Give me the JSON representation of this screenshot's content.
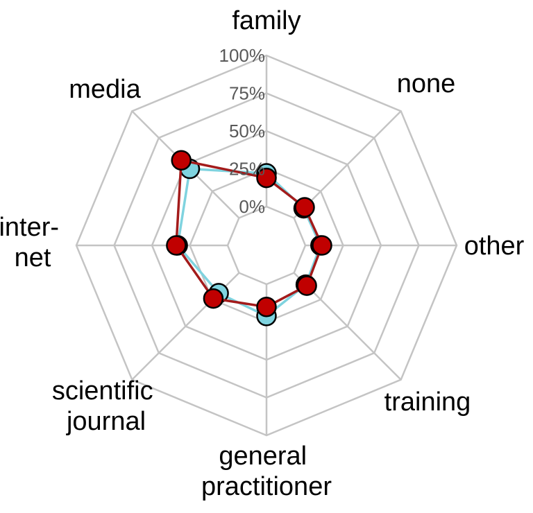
{
  "chart_data": {
    "type": "radar",
    "categories": [
      "family",
      "none",
      "other",
      "training",
      "general practitioner",
      "scientific journal",
      "internet",
      "media"
    ],
    "category_label_lines": [
      [
        "family"
      ],
      [
        "none"
      ],
      [
        "other"
      ],
      [
        "training"
      ],
      [
        "general",
        "practitioner"
      ],
      [
        "scientific",
        "journal"
      ],
      [
        "inter-",
        "net"
      ],
      [
        "media"
      ]
    ],
    "rlim": [
      0,
      100
    ],
    "ticks": [
      "0%",
      "25%",
      "50%",
      "75%",
      "100%"
    ],
    "grid": true,
    "series": [
      {
        "color": "#7fd3df",
        "marker_color": "#7fd3df",
        "values": [
          22,
          9,
          10,
          11,
          21,
          19,
          33,
          46
        ]
      },
      {
        "color": "#a31b1b",
        "marker_color": "#c00000",
        "values": [
          19,
          10,
          11,
          12,
          15,
          24,
          34,
          54
        ]
      }
    ]
  }
}
